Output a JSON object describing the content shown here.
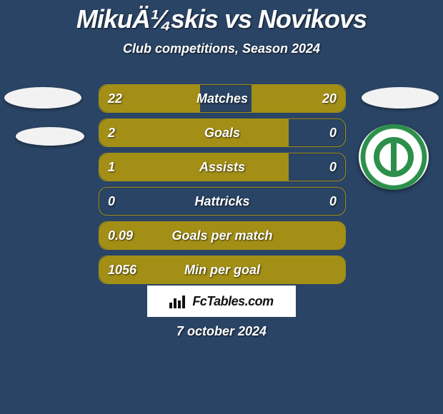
{
  "header": {
    "title": "MikuÄ¼skis vs Novikovs",
    "subtitle": "Club competitions, Season 2024"
  },
  "colors": {
    "background": "#2a4465",
    "bar_fill": "#a38f16",
    "bar_border": "#a38f16",
    "text": "#ffffff",
    "logo_bg": "#ffffff",
    "logo_text": "#111111",
    "crest_green": "#2c8f4a"
  },
  "rows": [
    {
      "label": "Matches",
      "left_text": "22",
      "right_text": "20",
      "left_pct": 41,
      "right_pct": 38
    },
    {
      "label": "Goals",
      "left_text": "2",
      "right_text": "0",
      "left_pct": 77,
      "right_pct": 0
    },
    {
      "label": "Assists",
      "left_text": "1",
      "right_text": "0",
      "left_pct": 77,
      "right_pct": 0
    },
    {
      "label": "Hattricks",
      "left_text": "0",
      "right_text": "0",
      "left_pct": 0,
      "right_pct": 0
    },
    {
      "label": "Goals per match",
      "left_text": "0.09",
      "right_text": "",
      "left_pct": 100,
      "right_pct": 0
    },
    {
      "label": "Min per goal",
      "left_text": "1056",
      "right_text": "",
      "left_pct": 100,
      "right_pct": 0
    }
  ],
  "footer": {
    "brand": "FcTables.com",
    "date": "7 october 2024"
  }
}
